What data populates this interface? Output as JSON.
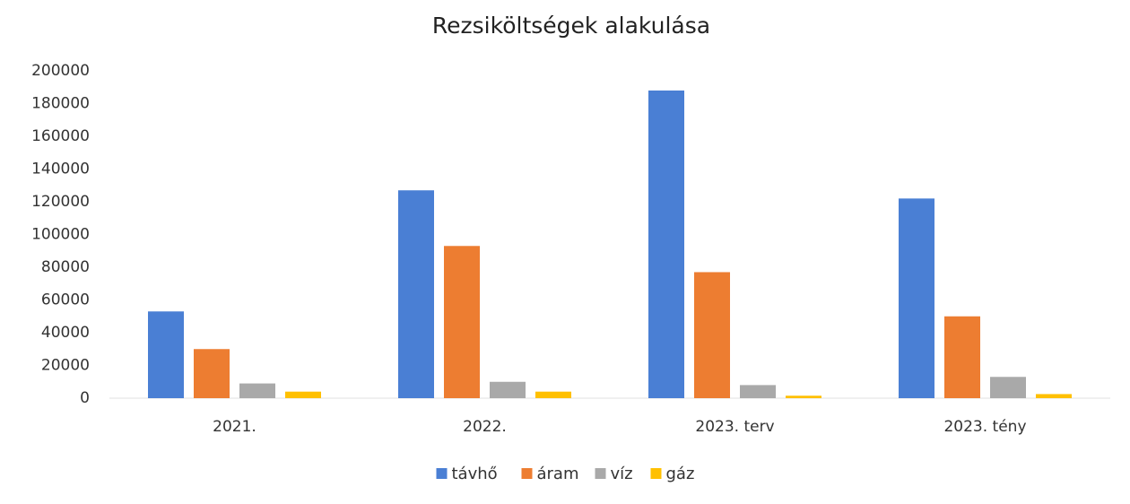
{
  "chart_data": {
    "type": "bar",
    "title": "Rezsiköltségek alakulása",
    "categories": [
      "2021.",
      "2022.",
      "2023. terv",
      "2023. tény"
    ],
    "series": [
      {
        "name": "távhő",
        "color": "#4a7fd4",
        "values": [
          53000,
          127000,
          188000,
          122000
        ]
      },
      {
        "name": "áram",
        "color": "#ed7d31",
        "values": [
          30000,
          93000,
          77000,
          50000
        ]
      },
      {
        "name": "víz",
        "color": "#a9a9a9",
        "values": [
          9000,
          10000,
          8000,
          13000
        ]
      },
      {
        "name": "gáz",
        "color": "#ffc000",
        "values": [
          4000,
          4000,
          1500,
          2500
        ]
      }
    ],
    "ylim": [
      0,
      200000
    ],
    "yticks": [
      0,
      20000,
      40000,
      60000,
      80000,
      100000,
      120000,
      140000,
      160000,
      180000,
      200000
    ],
    "grid": false,
    "legend": "bottom"
  }
}
